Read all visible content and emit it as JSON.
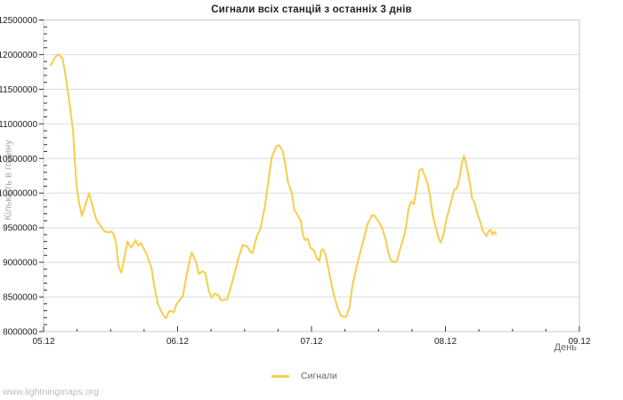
{
  "watermark": "www.lightningmaps.org",
  "chart": {
    "title": "Сигнали всіх станцій з останніх 3 днів",
    "y_axis": {
      "title": "Кількість в годину",
      "min": 8000000,
      "max": 12500000,
      "major_step": 500000,
      "minor_step": 100000,
      "tick_labels": [
        "8000000",
        "8500000",
        "9000000",
        "9500000",
        "10000000",
        "10500000",
        "11000000",
        "11500000",
        "12000000",
        "12500000"
      ]
    },
    "x_axis": {
      "title": "День",
      "tick_labels": [
        "05.12",
        "06.12",
        "07.12",
        "08.12",
        "09.12"
      ],
      "minor_ticks_per_major": 3
    },
    "legend": {
      "label": "Сигнали",
      "color": "#f6ce4b"
    },
    "colors": {
      "line": "#f6ce4b",
      "grid": "#dcdcdc",
      "border": "#c8c8c8",
      "tick": "#333333",
      "tick_label": "#222222"
    }
  },
  "chart_data": {
    "type": "line",
    "title": "Сигнали всіх станцій з останніх 3 днів",
    "xlabel": "День",
    "ylabel": "Кількість в годину",
    "xlim_days": [
      0,
      4
    ],
    "ylim": [
      8000000,
      12500000
    ],
    "x_tick_labels": [
      "05.12",
      "06.12",
      "07.12",
      "08.12",
      "09.12"
    ],
    "grid": "horizontal-only",
    "legend_position": "bottom-center",
    "series": [
      {
        "name": "Сигнали",
        "color": "#f6ce4b",
        "points": [
          [
            0.053,
            11850000
          ],
          [
            0.093,
            11980000
          ],
          [
            0.113,
            12000000
          ],
          [
            0.14,
            11950000
          ],
          [
            0.16,
            11740000
          ],
          [
            0.193,
            11310000
          ],
          [
            0.22,
            10890000
          ],
          [
            0.233,
            10460000
          ],
          [
            0.247,
            10090000
          ],
          [
            0.266,
            9850000
          ],
          [
            0.286,
            9670000
          ],
          [
            0.306,
            9800000
          ],
          [
            0.34,
            10000000
          ],
          [
            0.366,
            9810000
          ],
          [
            0.393,
            9620000
          ],
          [
            0.42,
            9540000
          ],
          [
            0.453,
            9450000
          ],
          [
            0.486,
            9430000
          ],
          [
            0.506,
            9450000
          ],
          [
            0.526,
            9390000
          ],
          [
            0.54,
            9280000
          ],
          [
            0.56,
            8940000
          ],
          [
            0.58,
            8850000
          ],
          [
            0.606,
            9100000
          ],
          [
            0.626,
            9300000
          ],
          [
            0.653,
            9210000
          ],
          [
            0.686,
            9320000
          ],
          [
            0.706,
            9240000
          ],
          [
            0.726,
            9280000
          ],
          [
            0.773,
            9100000
          ],
          [
            0.806,
            8910000
          ],
          [
            0.826,
            8660000
          ],
          [
            0.853,
            8400000
          ],
          [
            0.886,
            8260000
          ],
          [
            0.913,
            8190000
          ],
          [
            0.939,
            8300000
          ],
          [
            0.973,
            8280000
          ],
          [
            0.993,
            8400000
          ],
          [
            1.006,
            8430000
          ],
          [
            1.039,
            8510000
          ],
          [
            1.066,
            8800000
          ],
          [
            1.093,
            9050000
          ],
          [
            1.106,
            9140000
          ],
          [
            1.139,
            9000000
          ],
          [
            1.159,
            8830000
          ],
          [
            1.186,
            8870000
          ],
          [
            1.206,
            8850000
          ],
          [
            1.232,
            8600000
          ],
          [
            1.252,
            8490000
          ],
          [
            1.279,
            8550000
          ],
          [
            1.306,
            8520000
          ],
          [
            1.326,
            8450000
          ],
          [
            1.352,
            8460000
          ],
          [
            1.372,
            8470000
          ],
          [
            1.406,
            8700000
          ],
          [
            1.452,
            9040000
          ],
          [
            1.486,
            9250000
          ],
          [
            1.519,
            9230000
          ],
          [
            1.546,
            9150000
          ],
          [
            1.559,
            9130000
          ],
          [
            1.592,
            9380000
          ],
          [
            1.619,
            9490000
          ],
          [
            1.652,
            9810000
          ],
          [
            1.686,
            10280000
          ],
          [
            1.705,
            10530000
          ],
          [
            1.739,
            10680000
          ],
          [
            1.759,
            10690000
          ],
          [
            1.785,
            10610000
          ],
          [
            1.805,
            10400000
          ],
          [
            1.825,
            10150000
          ],
          [
            1.852,
            10020000
          ],
          [
            1.872,
            9760000
          ],
          [
            1.892,
            9700000
          ],
          [
            1.919,
            9600000
          ],
          [
            1.939,
            9380000
          ],
          [
            1.952,
            9320000
          ],
          [
            1.972,
            9340000
          ],
          [
            1.992,
            9210000
          ],
          [
            2.019,
            9170000
          ],
          [
            2.039,
            9060000
          ],
          [
            2.059,
            9020000
          ],
          [
            2.072,
            9170000
          ],
          [
            2.085,
            9190000
          ],
          [
            2.105,
            9110000
          ],
          [
            2.125,
            8920000
          ],
          [
            2.152,
            8660000
          ],
          [
            2.172,
            8490000
          ],
          [
            2.192,
            8360000
          ],
          [
            2.218,
            8230000
          ],
          [
            2.238,
            8220000
          ],
          [
            2.258,
            8210000
          ],
          [
            2.285,
            8360000
          ],
          [
            2.305,
            8660000
          ],
          [
            2.338,
            8950000
          ],
          [
            2.365,
            9150000
          ],
          [
            2.392,
            9350000
          ],
          [
            2.418,
            9550000
          ],
          [
            2.452,
            9680000
          ],
          [
            2.472,
            9670000
          ],
          [
            2.498,
            9600000
          ],
          [
            2.525,
            9510000
          ],
          [
            2.552,
            9340000
          ],
          [
            2.572,
            9150000
          ],
          [
            2.592,
            9030000
          ],
          [
            2.618,
            9000000
          ],
          [
            2.638,
            9020000
          ],
          [
            2.658,
            9170000
          ],
          [
            2.685,
            9340000
          ],
          [
            2.705,
            9500000
          ],
          [
            2.725,
            9780000
          ],
          [
            2.745,
            9880000
          ],
          [
            2.765,
            9840000
          ],
          [
            2.785,
            10070000
          ],
          [
            2.805,
            10330000
          ],
          [
            2.825,
            10350000
          ],
          [
            2.845,
            10250000
          ],
          [
            2.865,
            10150000
          ],
          [
            2.885,
            9960000
          ],
          [
            2.905,
            9680000
          ],
          [
            2.925,
            9520000
          ],
          [
            2.951,
            9340000
          ],
          [
            2.965,
            9280000
          ],
          [
            2.985,
            9400000
          ],
          [
            3.005,
            9600000
          ],
          [
            3.025,
            9750000
          ],
          [
            3.045,
            9900000
          ],
          [
            3.065,
            10050000
          ],
          [
            3.085,
            10070000
          ],
          [
            3.105,
            10220000
          ],
          [
            3.125,
            10450000
          ],
          [
            3.138,
            10540000
          ],
          [
            3.158,
            10390000
          ],
          [
            3.185,
            10120000
          ],
          [
            3.198,
            9930000
          ],
          [
            3.218,
            9860000
          ],
          [
            3.238,
            9700000
          ],
          [
            3.258,
            9600000
          ],
          [
            3.278,
            9460000
          ],
          [
            3.298,
            9400000
          ],
          [
            3.308,
            9380000
          ],
          [
            3.322,
            9450000
          ],
          [
            3.338,
            9470000
          ],
          [
            3.352,
            9400000
          ],
          [
            3.365,
            9440000
          ],
          [
            3.378,
            9410000
          ]
        ]
      }
    ]
  }
}
